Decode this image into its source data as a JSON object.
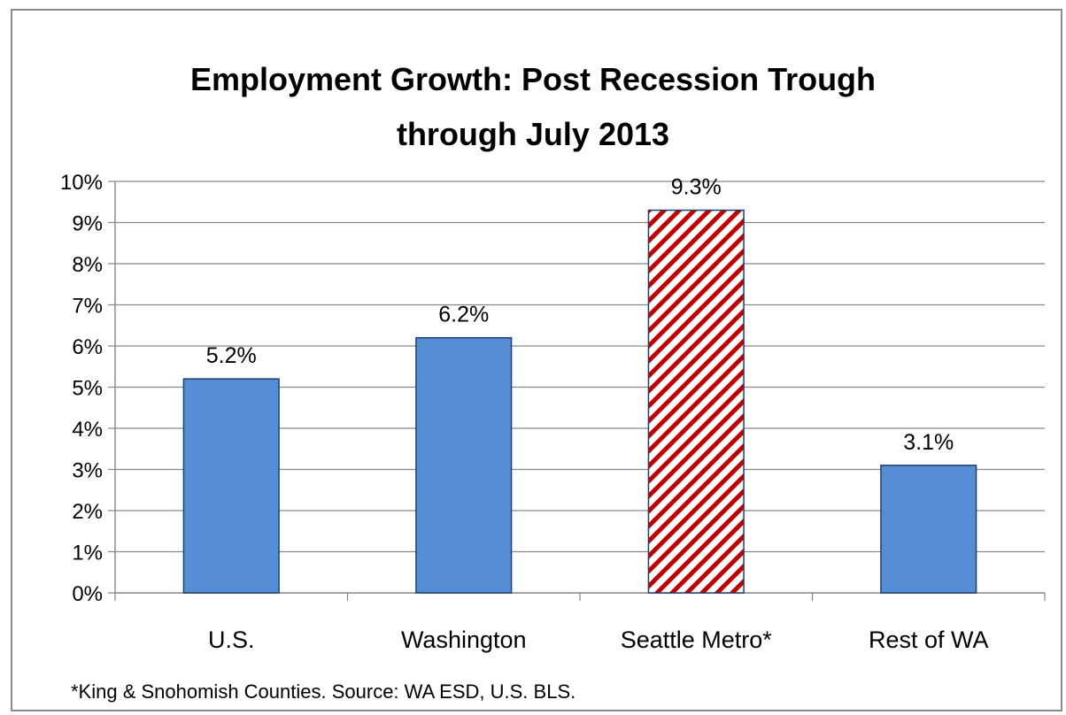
{
  "chart_data": {
    "type": "bar",
    "title_lines": [
      "Employment Growth: Post Recession Trough",
      "through July 2013"
    ],
    "categories": [
      "U.S.",
      "Washington",
      "Seattle Metro*",
      "Rest of WA"
    ],
    "values": [
      5.2,
      6.2,
      9.3,
      3.1
    ],
    "value_labels": [
      "5.2%",
      "6.2%",
      "9.3%",
      "3.1%"
    ],
    "y_ticks": [
      "0%",
      "1%",
      "2%",
      "3%",
      "4%",
      "5%",
      "6%",
      "7%",
      "8%",
      "9%",
      "10%"
    ],
    "ylim": [
      0,
      10
    ],
    "xlabel": "",
    "ylabel": "",
    "grid": true,
    "legend": false,
    "colors": {
      "bar": "#558ed5",
      "bar_border": "#1f3e70",
      "highlight_stripe": "#c00000",
      "grid": "#868686"
    },
    "highlight_category": "Seattle Metro*",
    "footnote": "*King & Snohomish Counties.  Source: WA ESD, U.S. BLS."
  }
}
